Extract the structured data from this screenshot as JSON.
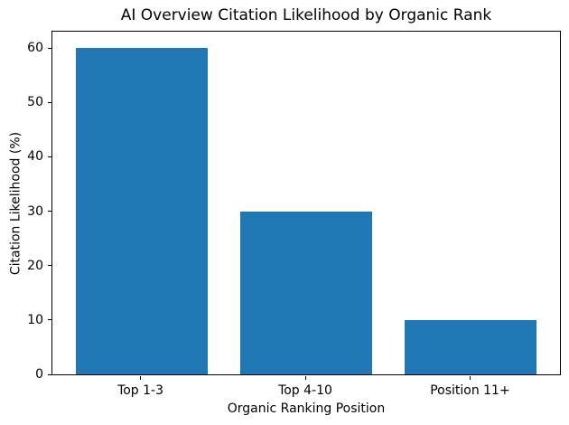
{
  "chart_data": {
    "type": "bar",
    "title": "AI Overview Citation Likelihood by Organic Rank",
    "xlabel": "Organic Ranking Position",
    "ylabel": "Citation Likelihood (%)",
    "categories": [
      "Top 1-3",
      "Top 4-10",
      "Position 11+"
    ],
    "values": [
      60,
      30,
      10
    ],
    "yticks": [
      0,
      10,
      20,
      30,
      40,
      50,
      60
    ],
    "ylim": [
      0,
      63
    ],
    "xlim": [
      -0.54,
      2.54
    ],
    "bar_width": 0.8,
    "bar_color": "#1f77b4",
    "background_color": "#ffffff",
    "spine_color": "#000000",
    "grid": false,
    "legend": "none"
  }
}
